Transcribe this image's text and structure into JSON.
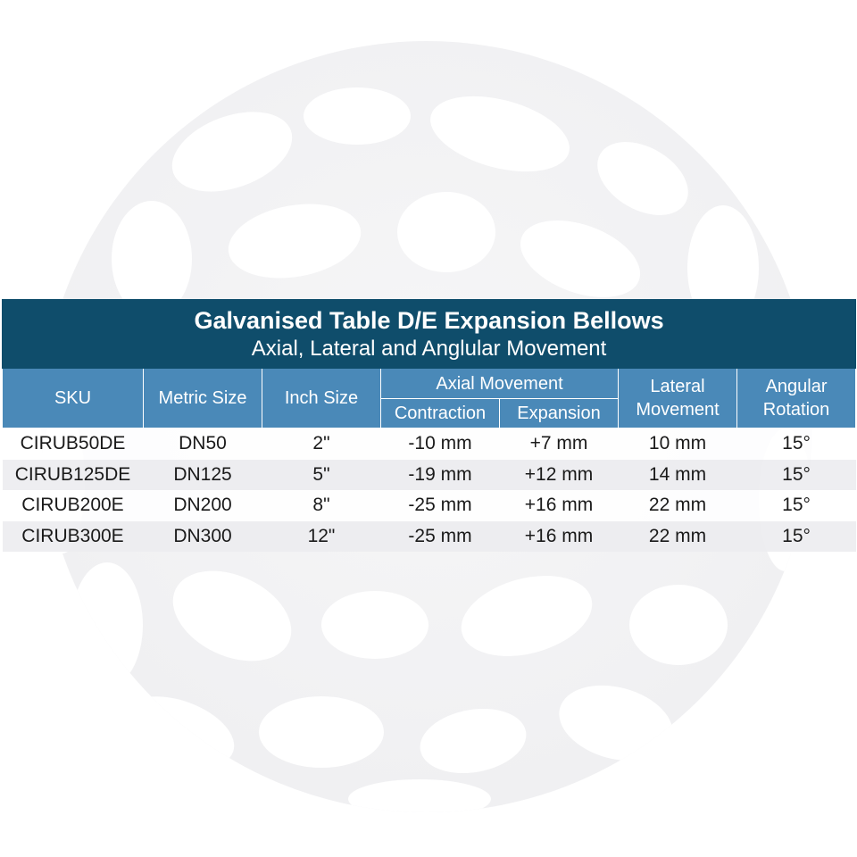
{
  "table": {
    "title": "Galvanised Table D/E Expansion Bellows",
    "subtitle": "Axial, Lateral and Anglular Movement",
    "headers": {
      "sku": "SKU",
      "metric_size": "Metric Size",
      "inch_size": "Inch Size",
      "axial_movement": "Axial Movement",
      "contraction": "Contraction",
      "expansion": "Expansion",
      "lateral_movement_line1": "Lateral",
      "lateral_movement_line2": "Movement",
      "angular_rotation_line1": "Angular",
      "angular_rotation_line2": "Rotation"
    },
    "rows": [
      {
        "sku": "CIRUB50DE",
        "metric": "DN50",
        "inch": "2\"",
        "contraction": "-10 mm",
        "expansion": "+7 mm",
        "lateral": "10 mm",
        "angular": "15°"
      },
      {
        "sku": "CIRUB125DE",
        "metric": "DN125",
        "inch": "5\"",
        "contraction": "-19 mm",
        "expansion": "+12 mm",
        "lateral": "14 mm",
        "angular": "15°"
      },
      {
        "sku": "CIRUB200E",
        "metric": "DN200",
        "inch": "8\"",
        "contraction": "-25 mm",
        "expansion": "+16 mm",
        "lateral": "22 mm",
        "angular": "15°"
      },
      {
        "sku": "CIRUB300E",
        "metric": "DN300",
        "inch": "12\"",
        "contraction": "-25 mm",
        "expansion": "+16 mm",
        "lateral": "22 mm",
        "angular": "15°"
      }
    ]
  },
  "colors": {
    "title_bg": "#0f4d6b",
    "header_bg": "#4a89b8",
    "row_alt_bg": "#ececf0"
  }
}
